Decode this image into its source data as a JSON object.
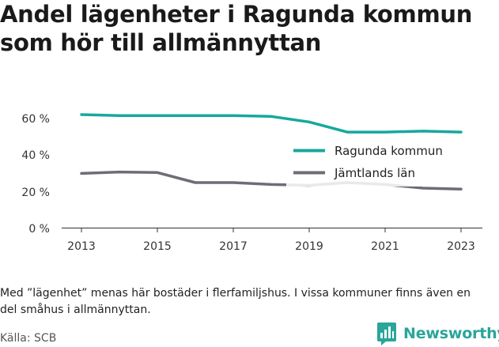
{
  "title_lines": [
    "Andel lägenheter i Ragunda kommun",
    "som hör till allmännyttan"
  ],
  "note": "Med ”lägenhet” menas här bostäder i flerfamiljshus. I vissa kommuner finns även en del småhus i allmännyttan.",
  "source": "Källa: SCB",
  "brand": {
    "name": "Newsworthy",
    "icon": "bar-chart-logo-icon",
    "color": "#2aa59a"
  },
  "chart_data": {
    "type": "line",
    "x": [
      2013,
      2014,
      2015,
      2016,
      2017,
      2018,
      2019,
      2020,
      2021,
      2022,
      2023
    ],
    "xticks": [
      "2013",
      "2015",
      "2017",
      "2019",
      "2021",
      "2023"
    ],
    "yticks": [
      "0 %",
      "20 %",
      "40 %",
      "60 %"
    ],
    "ylim": [
      0,
      60
    ],
    "grid": false,
    "legend_position": "right",
    "series": [
      {
        "name": "Ragunda kommun",
        "color": "#17a89c",
        "values": [
          61.5,
          61.0,
          61.0,
          61.0,
          61.0,
          60.5,
          57.5,
          52.0,
          52.0,
          52.5,
          52.0
        ]
      },
      {
        "name": "Jämtlands län",
        "color": "#6d6d77",
        "values": [
          29.5,
          30.3,
          30.0,
          24.5,
          24.5,
          23.5,
          23.0,
          24.5,
          23.5,
          21.5,
          21.0
        ]
      }
    ]
  }
}
